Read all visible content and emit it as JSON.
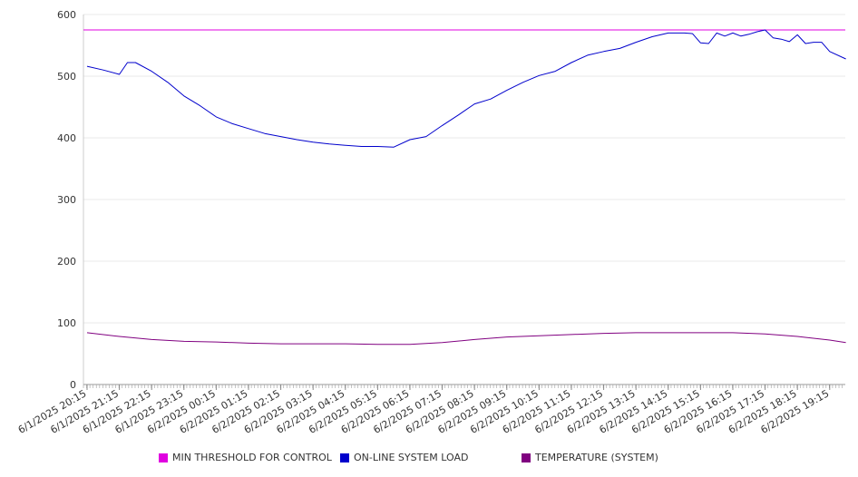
{
  "chart_data": {
    "type": "line",
    "ylim": [
      0,
      600
    ],
    "yticks": [
      "0",
      "100",
      "200",
      "300",
      "400",
      "500",
      "600"
    ],
    "xticks": [
      "6/1/2025 20:15",
      "6/1/2025 21:15",
      "6/1/2025 22:15",
      "6/1/2025 23:15",
      "6/2/2025 00:15",
      "6/2/2025 01:15",
      "6/2/2025 02:15",
      "6/2/2025 03:15",
      "6/2/2025 04:15",
      "6/2/2025 05:15",
      "6/2/2025 06:15",
      "6/2/2025 07:15",
      "6/2/2025 08:15",
      "6/2/2025 09:15",
      "6/2/2025 10:15",
      "6/2/2025 11:15",
      "6/2/2025 12:15",
      "6/2/2025 13:15",
      "6/2/2025 14:15",
      "6/2/2025 15:15",
      "6/2/2025 16:15",
      "6/2/2025 17:15",
      "6/2/2025 18:15",
      "6/2/2025 19:15"
    ],
    "grid": true,
    "legend_position": "bottom",
    "series": [
      {
        "name": "MIN THRESHOLD FOR CONTROL",
        "color": "#e000e0",
        "x": [
          "6/1/2025 20:15",
          "6/2/2025 19:15"
        ],
        "values": [
          575,
          575
        ],
        "extend_to_edges": true
      },
      {
        "name": "ON-LINE SYSTEM LOAD",
        "color": "#0000cc",
        "x": [
          "6/1/2025 20:15",
          "6/1/2025 20:45",
          "6/1/2025 21:15",
          "6/1/2025 21:30",
          "6/1/2025 21:45",
          "6/1/2025 22:15",
          "6/1/2025 22:45",
          "6/1/2025 23:15",
          "6/1/2025 23:45",
          "6/2/2025 00:15",
          "6/2/2025 00:45",
          "6/2/2025 01:15",
          "6/2/2025 01:45",
          "6/2/2025 02:15",
          "6/2/2025 02:45",
          "6/2/2025 03:15",
          "6/2/2025 03:45",
          "6/2/2025 04:15",
          "6/2/2025 04:45",
          "6/2/2025 05:15",
          "6/2/2025 05:45",
          "6/2/2025 06:15",
          "6/2/2025 06:45",
          "6/2/2025 07:15",
          "6/2/2025 07:45",
          "6/2/2025 08:15",
          "6/2/2025 08:45",
          "6/2/2025 09:15",
          "6/2/2025 09:45",
          "6/2/2025 10:15",
          "6/2/2025 10:45",
          "6/2/2025 11:15",
          "6/2/2025 11:45",
          "6/2/2025 12:15",
          "6/2/2025 12:45",
          "6/2/2025 13:15",
          "6/2/2025 13:45",
          "6/2/2025 14:15",
          "6/2/2025 14:45",
          "6/2/2025 15:00",
          "6/2/2025 15:15",
          "6/2/2025 15:30",
          "6/2/2025 15:45",
          "6/2/2025 16:00",
          "6/2/2025 16:15",
          "6/2/2025 16:30",
          "6/2/2025 16:45",
          "6/2/2025 17:00",
          "6/2/2025 17:15",
          "6/2/2025 17:30",
          "6/2/2025 17:45",
          "6/2/2025 18:00",
          "6/2/2025 18:15",
          "6/2/2025 18:30",
          "6/2/2025 18:45",
          "6/2/2025 19:00",
          "6/2/2025 19:15",
          "6/2/2025 19:45"
        ],
        "values": [
          516,
          510,
          503,
          522,
          522,
          508,
          490,
          468,
          452,
          434,
          423,
          415,
          407,
          402,
          397,
          393,
          390,
          388,
          386,
          386,
          385,
          397,
          402,
          420,
          437,
          455,
          463,
          477,
          490,
          501,
          508,
          522,
          534,
          540,
          545,
          555,
          564,
          570,
          570,
          569,
          554,
          553,
          570,
          565,
          570,
          565,
          568,
          572,
          575,
          562,
          560,
          556,
          567,
          553,
          555,
          555,
          540,
          528
        ]
      },
      {
        "name": "TEMPERATURE (SYSTEM)",
        "color": "#800080",
        "x": [
          "6/1/2025 20:15",
          "6/1/2025 21:15",
          "6/1/2025 22:15",
          "6/1/2025 23:15",
          "6/2/2025 00:15",
          "6/2/2025 01:15",
          "6/2/2025 02:15",
          "6/2/2025 03:15",
          "6/2/2025 04:15",
          "6/2/2025 05:15",
          "6/2/2025 06:15",
          "6/2/2025 07:15",
          "6/2/2025 08:15",
          "6/2/2025 09:15",
          "6/2/2025 10:15",
          "6/2/2025 11:15",
          "6/2/2025 12:15",
          "6/2/2025 13:15",
          "6/2/2025 14:15",
          "6/2/2025 15:15",
          "6/2/2025 16:15",
          "6/2/2025 17:15",
          "6/2/2025 18:15",
          "6/2/2025 19:15",
          "6/2/2025 19:45"
        ],
        "values": [
          84,
          78,
          73,
          70,
          69,
          67,
          66,
          66,
          66,
          65,
          65,
          68,
          73,
          77,
          79,
          81,
          83,
          84,
          84,
          84,
          84,
          82,
          78,
          72,
          68
        ]
      }
    ]
  }
}
